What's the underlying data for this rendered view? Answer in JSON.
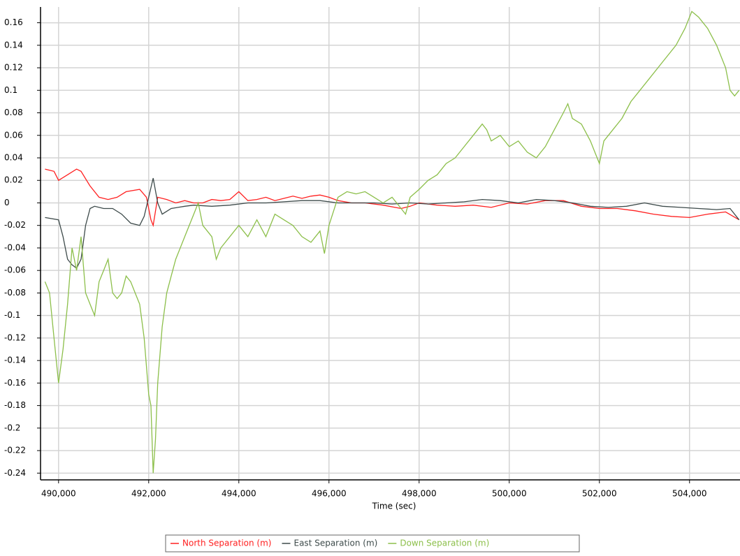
{
  "chart_data": {
    "type": "line",
    "x_label": "Time (sec)",
    "grid": true,
    "legend": "bottom",
    "xlim": [
      489600,
      505120
    ],
    "ylim": [
      -0.246,
      0.174
    ],
    "xticks": [
      {
        "value": 490000,
        "label": "490,000"
      },
      {
        "value": 492000,
        "label": "492,000"
      },
      {
        "value": 494000,
        "label": "494,000"
      },
      {
        "value": 496000,
        "label": "496,000"
      },
      {
        "value": 498000,
        "label": "498,000"
      },
      {
        "value": 500000,
        "label": "500,000"
      },
      {
        "value": 502000,
        "label": "502,000"
      },
      {
        "value": 504000,
        "label": "504,000"
      }
    ],
    "yticks": [
      0.16,
      0.14,
      0.12,
      0.1,
      0.08,
      0.06,
      0.04,
      0.02,
      0,
      -0.02,
      -0.04,
      -0.06,
      -0.08,
      -0.1,
      -0.12,
      -0.14,
      -0.16,
      -0.18,
      -0.2,
      -0.22,
      -0.24
    ],
    "series": [
      {
        "name": "North Separation (m)",
        "color": "#ff2020",
        "x": [
          489700,
          489900,
          490000,
          490200,
          490400,
          490500,
          490700,
          490900,
          491100,
          491300,
          491500,
          491800,
          491950,
          492050,
          492100,
          492200,
          492400,
          492600,
          492800,
          493000,
          493200,
          493400,
          493600,
          493800,
          494000,
          494200,
          494400,
          494600,
          494800,
          495000,
          495200,
          495400,
          495600,
          495800,
          496000,
          496200,
          496500,
          496800,
          497200,
          497600,
          497800,
          498000,
          498400,
          498800,
          499200,
          499600,
          500000,
          500400,
          500800,
          501200,
          501600,
          502000,
          502400,
          502800,
          503200,
          503600,
          504000,
          504400,
          504800,
          505100
        ],
        "values": [
          0.03,
          0.028,
          0.02,
          0.025,
          0.03,
          0.028,
          0.015,
          0.005,
          0.003,
          0.005,
          0.01,
          0.012,
          0.005,
          -0.015,
          -0.02,
          0.005,
          0.003,
          0,
          0.002,
          0,
          0,
          0.003,
          0.002,
          0.003,
          0.01,
          0.002,
          0.003,
          0.005,
          0.002,
          0.004,
          0.006,
          0.004,
          0.006,
          0.007,
          0.005,
          0.002,
          0,
          0,
          -0.002,
          -0.005,
          -0.003,
          0,
          -0.002,
          -0.003,
          -0.002,
          -0.004,
          0,
          -0.001,
          0.002,
          0.002,
          -0.003,
          -0.005,
          -0.005,
          -0.007,
          -0.01,
          -0.012,
          -0.013,
          -0.01,
          -0.008,
          -0.015
        ]
      },
      {
        "name": "East Separation (m)",
        "color": "#3d4a4a",
        "x": [
          489700,
          490000,
          490100,
          490200,
          490300,
          490400,
          490500,
          490600,
          490700,
          490800,
          491000,
          491200,
          491400,
          491600,
          491800,
          491900,
          492000,
          492100,
          492200,
          492300,
          492500,
          492800,
          493000,
          493400,
          493800,
          494200,
          494600,
          495000,
          495400,
          495800,
          496200,
          496600,
          497000,
          497400,
          497800,
          498200,
          498600,
          499000,
          499400,
          499800,
          500200,
          500600,
          501000,
          501400,
          501800,
          502200,
          502600,
          503000,
          503400,
          503800,
          504200,
          504600,
          504900,
          505100
        ],
        "values": [
          -0.013,
          -0.015,
          -0.03,
          -0.05,
          -0.055,
          -0.058,
          -0.05,
          -0.02,
          -0.005,
          -0.003,
          -0.005,
          -0.005,
          -0.01,
          -0.018,
          -0.02,
          -0.012,
          0.005,
          0.022,
          0,
          -0.01,
          -0.005,
          -0.003,
          -0.002,
          -0.003,
          -0.002,
          0,
          0,
          0.001,
          0.002,
          0.002,
          0,
          0,
          0,
          -0.001,
          0,
          -0.001,
          0,
          0.001,
          0.003,
          0.002,
          0,
          0.003,
          0.002,
          0,
          -0.003,
          -0.004,
          -0.003,
          0,
          -0.003,
          -0.004,
          -0.005,
          -0.006,
          -0.005,
          -0.015
        ]
      },
      {
        "name": "Down Separation (m)",
        "color": "#8cbf4a",
        "x": [
          489700,
          489800,
          489900,
          490000,
          490100,
          490200,
          490300,
          490400,
          490500,
          490600,
          490700,
          490800,
          490900,
          491000,
          491100,
          491200,
          491300,
          491400,
          491500,
          491600,
          491700,
          491800,
          491900,
          492000,
          492050,
          492100,
          492150,
          492200,
          492300,
          492400,
          492500,
          492600,
          492800,
          493000,
          493100,
          493200,
          493400,
          493500,
          493600,
          493800,
          494000,
          494200,
          494400,
          494600,
          494800,
          495000,
          495200,
          495400,
          495600,
          495800,
          495900,
          496000,
          496200,
          496400,
          496600,
          496800,
          497000,
          497200,
          497400,
          497600,
          497700,
          497800,
          498000,
          498200,
          498400,
          498600,
          498800,
          499000,
          499200,
          499400,
          499500,
          499600,
          499800,
          500000,
          500200,
          500400,
          500600,
          500800,
          501000,
          501200,
          501300,
          501400,
          501600,
          501800,
          501900,
          502000,
          502100,
          502300,
          502500,
          502700,
          502900,
          503100,
          503300,
          503500,
          503700,
          503900,
          504050,
          504200,
          504400,
          504600,
          504800,
          504900,
          505000,
          505100
        ],
        "values": [
          -0.07,
          -0.08,
          -0.12,
          -0.16,
          -0.13,
          -0.09,
          -0.04,
          -0.06,
          -0.03,
          -0.08,
          -0.09,
          -0.1,
          -0.07,
          -0.06,
          -0.05,
          -0.08,
          -0.085,
          -0.08,
          -0.065,
          -0.07,
          -0.08,
          -0.09,
          -0.12,
          -0.17,
          -0.18,
          -0.24,
          -0.21,
          -0.16,
          -0.11,
          -0.08,
          -0.065,
          -0.05,
          -0.03,
          -0.01,
          0,
          -0.02,
          -0.03,
          -0.05,
          -0.04,
          -0.03,
          -0.02,
          -0.03,
          -0.015,
          -0.03,
          -0.01,
          -0.015,
          -0.02,
          -0.03,
          -0.035,
          -0.025,
          -0.045,
          -0.02,
          0.005,
          0.01,
          0.008,
          0.01,
          0.005,
          0,
          0.005,
          -0.005,
          -0.01,
          0.005,
          0.012,
          0.02,
          0.025,
          0.035,
          0.04,
          0.05,
          0.06,
          0.07,
          0.065,
          0.055,
          0.06,
          0.05,
          0.055,
          0.045,
          0.04,
          0.05,
          0.065,
          0.08,
          0.088,
          0.075,
          0.07,
          0.055,
          0.045,
          0.035,
          0.055,
          0.065,
          0.075,
          0.09,
          0.1,
          0.11,
          0.12,
          0.13,
          0.14,
          0.155,
          0.17,
          0.165,
          0.155,
          0.14,
          0.12,
          0.1,
          0.095,
          0.1
        ]
      }
    ]
  }
}
